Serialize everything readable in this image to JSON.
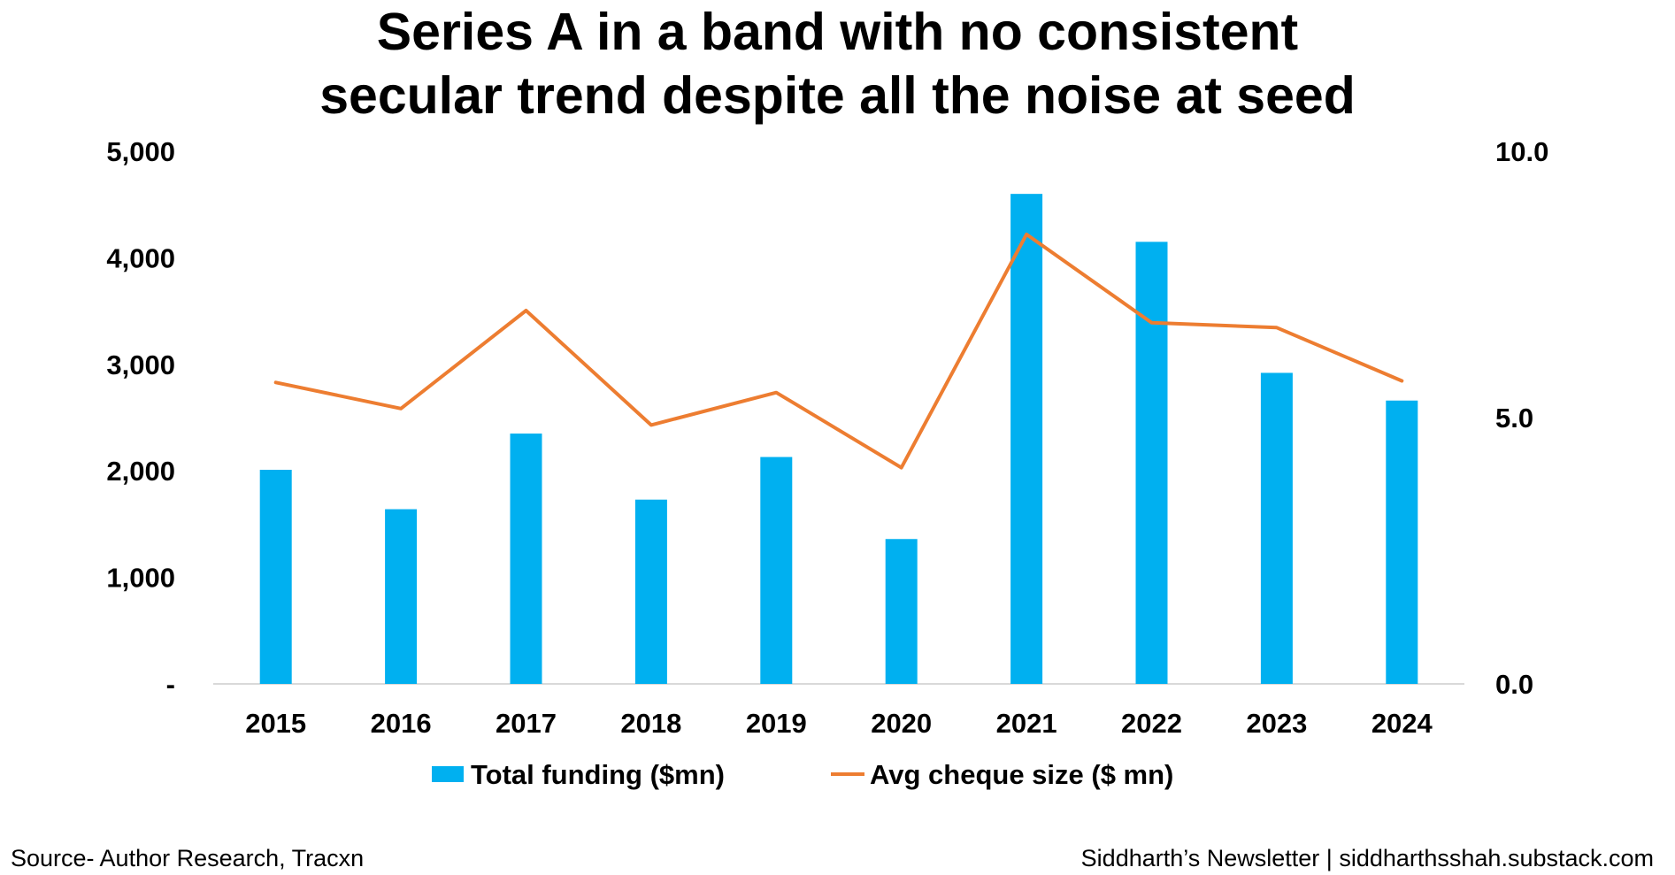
{
  "chart_data": {
    "type": "bar",
    "title_lines": [
      "Series A in a band with no consistent",
      "secular trend despite all the noise at seed"
    ],
    "categories": [
      "2015",
      "2016",
      "2017",
      "2018",
      "2019",
      "2020",
      "2021",
      "2022",
      "2023",
      "2024"
    ],
    "series": [
      {
        "name": "Total funding ($mn)",
        "type": "bar",
        "axis": "left",
        "color": "#00B0F0",
        "values": [
          2010,
          1640,
          2350,
          1730,
          2130,
          1360,
          4600,
          4150,
          2920,
          2660
        ]
      },
      {
        "name": "Avg cheque size ($ mn)",
        "type": "line",
        "axis": "right",
        "color": "#ED7D31",
        "values": [
          5.66,
          5.17,
          7.01,
          4.86,
          5.47,
          4.06,
          8.44,
          6.78,
          6.69,
          5.69
        ]
      }
    ],
    "y_left": {
      "ylim": [
        0,
        5000
      ],
      "ticks": [
        0,
        1000,
        2000,
        3000,
        4000,
        5000
      ],
      "tick_labels": [
        "-",
        "1,000",
        "2,000",
        "3,000",
        "4,000",
        "5,000"
      ]
    },
    "y_right": {
      "ylim": [
        0,
        10
      ],
      "ticks": [
        0,
        5,
        10
      ],
      "tick_labels": [
        "0.0",
        "5.0",
        "10.0"
      ]
    },
    "grid": false,
    "legend_position": "bottom"
  },
  "footer": {
    "source": "Source- Author Research, Tracxn",
    "credit": "Siddharth’s Newsletter | siddharthsshah.substack.com"
  }
}
